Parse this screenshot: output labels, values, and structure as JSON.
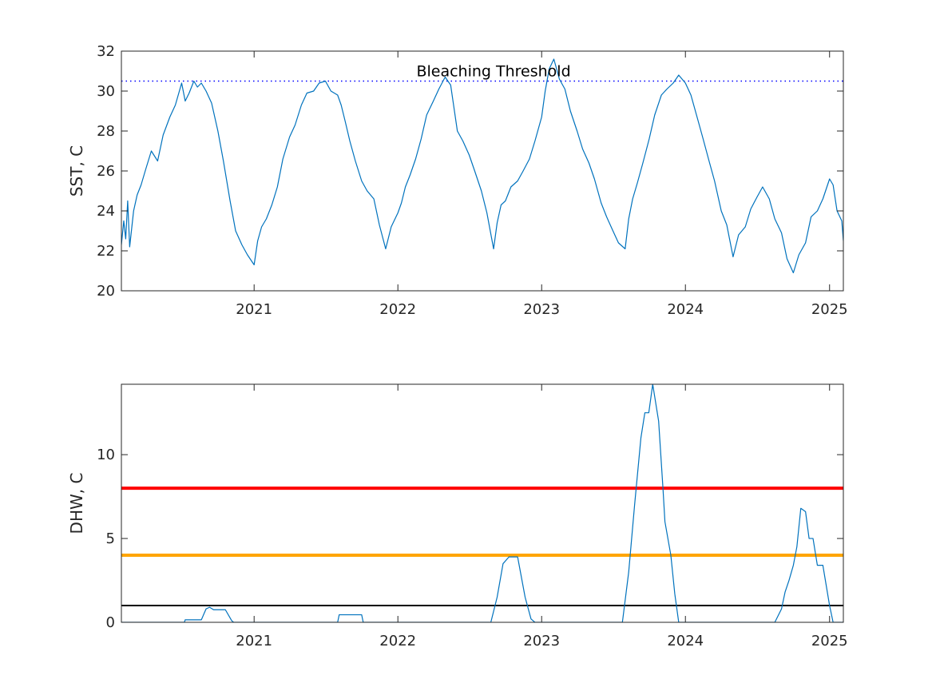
{
  "chart_data": [
    {
      "type": "line",
      "ylabel": "SST, C",
      "ylim": [
        20,
        32
      ],
      "xlim": [
        "2020-01-30",
        "2025-02-05"
      ],
      "x_ticks": [
        "2021",
        "2022",
        "2023",
        "2024",
        "2025"
      ],
      "y_ticks": [
        "20",
        "22",
        "24",
        "26",
        "28",
        "30",
        "32"
      ],
      "grid": false,
      "threshold": {
        "label": "Bleaching Threshold",
        "value": 30.5,
        "color": "#0000ff",
        "style": "dotted"
      },
      "series_color": "#0072bd",
      "series": [
        {
          "x": [
            "2020-01-30",
            "2020-02-05",
            "2020-02-10",
            "2020-02-15",
            "2020-02-20",
            "2020-02-25",
            "2020-03-01",
            "2020-03-10",
            "2020-03-20",
            "2020-04-01",
            "2020-04-15",
            "2020-05-01",
            "2020-05-15",
            "2020-06-01",
            "2020-06-15",
            "2020-07-01",
            "2020-07-10",
            "2020-07-20",
            "2020-08-01",
            "2020-08-10",
            "2020-08-20",
            "2020-09-01",
            "2020-09-15",
            "2020-10-01",
            "2020-10-15",
            "2020-11-01",
            "2020-11-15",
            "2020-12-01",
            "2020-12-15",
            "2021-01-01",
            "2021-01-10",
            "2021-01-20",
            "2021-02-01",
            "2021-02-15",
            "2021-03-01",
            "2021-03-15",
            "2021-04-01",
            "2021-04-15",
            "2021-05-01",
            "2021-05-15",
            "2021-06-01",
            "2021-06-15",
            "2021-07-01",
            "2021-07-15",
            "2021-08-01",
            "2021-08-10",
            "2021-08-20",
            "2021-09-01",
            "2021-09-15",
            "2021-10-01",
            "2021-10-15",
            "2021-11-01",
            "2021-11-15",
            "2021-12-01",
            "2021-12-15",
            "2022-01-01",
            "2022-01-10",
            "2022-01-20",
            "2022-02-01",
            "2022-02-15",
            "2022-03-01",
            "2022-03-15",
            "2022-04-01",
            "2022-04-15",
            "2022-05-01",
            "2022-05-15",
            "2022-06-01",
            "2022-06-15",
            "2022-07-01",
            "2022-07-15",
            "2022-08-01",
            "2022-08-15",
            "2022-09-01",
            "2022-09-10",
            "2022-09-20",
            "2022-10-01",
            "2022-10-15",
            "2022-11-01",
            "2022-11-15",
            "2022-12-01",
            "2022-12-15",
            "2023-01-01",
            "2023-01-10",
            "2023-01-20",
            "2023-02-01",
            "2023-02-15",
            "2023-03-01",
            "2023-03-15",
            "2023-04-01",
            "2023-04-15",
            "2023-05-01",
            "2023-05-15",
            "2023-06-01",
            "2023-06-15",
            "2023-07-01",
            "2023-07-15",
            "2023-08-01",
            "2023-08-10",
            "2023-08-20",
            "2023-09-01",
            "2023-09-15",
            "2023-10-01",
            "2023-10-15",
            "2023-11-01",
            "2023-11-15",
            "2023-12-01",
            "2023-12-15",
            "2024-01-01",
            "2024-01-15",
            "2024-02-01",
            "2024-02-15",
            "2024-03-01",
            "2024-03-15",
            "2024-04-01",
            "2024-04-15",
            "2024-05-01",
            "2024-05-15",
            "2024-06-01",
            "2024-06-15",
            "2024-07-01",
            "2024-07-15",
            "2024-08-01",
            "2024-08-15",
            "2024-09-01",
            "2024-09-15",
            "2024-10-01",
            "2024-10-15",
            "2024-11-01",
            "2024-11-15",
            "2024-12-01",
            "2024-12-15",
            "2025-01-01",
            "2025-01-10",
            "2025-01-20",
            "2025-02-01",
            "2025-02-05"
          ],
          "y": [
            22.3,
            23.5,
            22.6,
            24.5,
            22.2,
            23.1,
            24.0,
            24.8,
            25.3,
            26.1,
            27.0,
            26.5,
            27.8,
            28.7,
            29.3,
            30.4,
            29.5,
            29.9,
            30.5,
            30.2,
            30.4,
            30.0,
            29.4,
            28.0,
            26.5,
            24.5,
            23.0,
            22.3,
            21.8,
            21.3,
            22.5,
            23.2,
            23.6,
            24.3,
            25.2,
            26.6,
            27.7,
            28.3,
            29.3,
            29.9,
            30.0,
            30.4,
            30.5,
            30.0,
            29.8,
            29.3,
            28.5,
            27.5,
            26.5,
            25.5,
            25.0,
            24.6,
            23.3,
            22.1,
            23.2,
            23.9,
            24.4,
            25.2,
            25.8,
            26.6,
            27.6,
            28.8,
            29.5,
            30.1,
            30.7,
            30.3,
            28.0,
            27.5,
            26.8,
            26.0,
            25.0,
            23.9,
            22.1,
            23.4,
            24.3,
            24.5,
            25.2,
            25.5,
            26.0,
            26.6,
            27.5,
            28.7,
            30.0,
            31.1,
            31.6,
            30.6,
            30.1,
            29.0,
            28.0,
            27.1,
            26.4,
            25.6,
            24.4,
            23.7,
            23.0,
            22.4,
            22.1,
            23.6,
            24.6,
            25.4,
            26.4,
            27.6,
            28.8,
            29.8,
            30.1,
            30.4,
            30.8,
            30.4,
            29.8,
            28.6,
            27.6,
            26.5,
            25.5,
            24.0,
            23.3,
            21.7,
            22.8,
            23.2,
            24.1,
            24.7,
            25.2,
            24.6,
            23.6,
            22.9,
            21.6,
            20.9,
            21.8,
            22.4,
            23.7,
            24.0,
            24.6,
            25.6,
            25.3,
            24.0,
            23.5,
            22.5
          ]
        }
      ]
    },
    {
      "type": "line",
      "ylabel": "DHW, C",
      "ylim": [
        0,
        14.2
      ],
      "xlim": [
        "2020-01-30",
        "2025-02-05"
      ],
      "x_ticks": [
        "2021",
        "2022",
        "2023",
        "2024",
        "2025"
      ],
      "y_ticks": [
        "0",
        "5",
        "10"
      ],
      "grid": false,
      "reference_lines": [
        {
          "value": 8,
          "color": "#ff0000"
        },
        {
          "value": 4,
          "color": "#ffa500"
        },
        {
          "value": 1,
          "color": "#000000"
        }
      ],
      "series_color": "#0072bd",
      "series": [
        {
          "x": [
            "2020-01-30",
            "2020-07-08",
            "2020-07-10",
            "2020-08-20",
            "2020-09-01",
            "2020-09-10",
            "2020-09-20",
            "2020-10-01",
            "2020-10-20",
            "2020-11-05",
            "2020-11-10",
            "2021-08-01",
            "2021-08-05",
            "2021-10-01",
            "2021-10-05",
            "2022-08-25",
            "2022-09-10",
            "2022-09-25",
            "2022-10-10",
            "2022-11-01",
            "2022-11-20",
            "2022-12-05",
            "2022-12-15",
            "2023-07-25",
            "2023-08-10",
            "2023-08-25",
            "2023-09-10",
            "2023-09-20",
            "2023-09-30",
            "2023-10-10",
            "2023-10-25",
            "2023-11-05",
            "2023-11-10",
            "2023-11-25",
            "2023-12-05",
            "2023-12-15",
            "2024-08-15",
            "2024-09-01",
            "2024-09-10",
            "2024-09-20",
            "2024-10-01",
            "2024-10-10",
            "2024-10-20",
            "2024-11-01",
            "2024-11-10",
            "2024-11-20",
            "2024-12-01",
            "2024-12-15",
            "2025-01-01",
            "2025-01-10",
            "2025-02-05"
          ],
          "y": [
            0,
            0,
            0.15,
            0.15,
            0.8,
            0.9,
            0.75,
            0.75,
            0.75,
            0.1,
            0,
            0,
            0.45,
            0.45,
            0,
            0,
            1.5,
            3.5,
            3.9,
            3.9,
            1.5,
            0.2,
            0,
            0,
            3.0,
            7.0,
            11.0,
            12.5,
            12.5,
            14.2,
            12.0,
            8.0,
            6.0,
            4.0,
            1.7,
            0,
            0,
            0.8,
            1.8,
            2.5,
            3.4,
            4.5,
            6.8,
            6.6,
            5.0,
            5.0,
            3.4,
            3.4,
            1.0,
            0,
            0
          ]
        }
      ]
    }
  ]
}
